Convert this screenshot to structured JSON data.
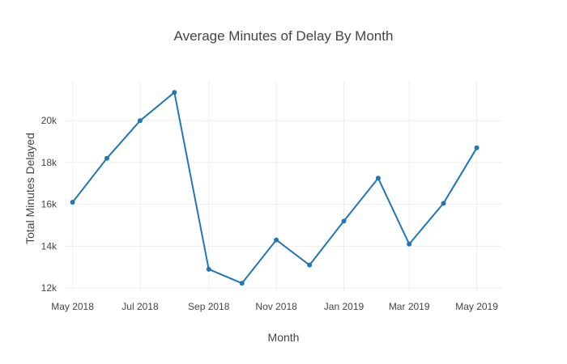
{
  "chart_data": {
    "type": "line",
    "title": "Average Minutes of Delay By Month",
    "xlabel": "Month",
    "ylabel": "Total Minutes Delayed",
    "x": [
      "2018-05",
      "2018-06",
      "2018-07",
      "2018-08",
      "2018-09",
      "2018-10",
      "2018-11",
      "2018-12",
      "2019-01",
      "2019-02",
      "2019-03",
      "2019-04",
      "2019-05"
    ],
    "series": [
      {
        "values": [
          16100,
          18200,
          20000,
          21350,
          12900,
          12230,
          14300,
          13100,
          15200,
          17250,
          14100,
          16050,
          18700
        ]
      }
    ],
    "x_ticks": [
      "2018-05",
      "2018-07",
      "2018-09",
      "2018-11",
      "2019-01",
      "2019-03",
      "2019-05"
    ],
    "x_tick_labels": [
      "May 2018",
      "Jul 2018",
      "Sep 2018",
      "Nov 2018",
      "Jan 2019",
      "Mar 2019",
      "May 2019"
    ],
    "y_ticks": [
      12000,
      14000,
      16000,
      18000,
      20000
    ],
    "y_tick_labels": [
      "12k",
      "14k",
      "16k",
      "18k",
      "20k"
    ],
    "ylim": [
      11850,
      21900
    ],
    "xlim": [
      "2018-04-24",
      "2019-05-24"
    ],
    "grid": true,
    "legend": "none",
    "colors": {
      "line": "#1f77b4",
      "grid": "#eeeeee",
      "text": "#444444"
    }
  }
}
